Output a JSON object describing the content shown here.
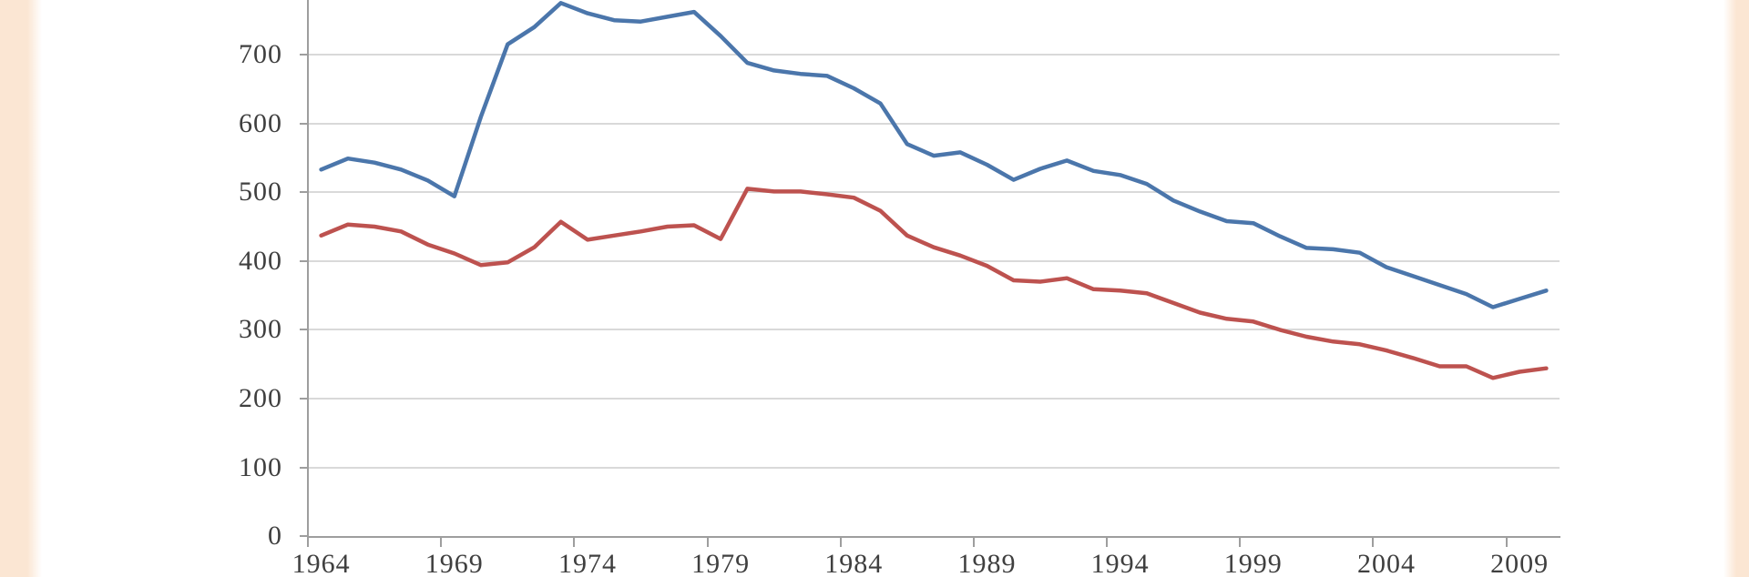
{
  "page": {
    "background_color": "#ffffff",
    "side_band_color": "#fbe6d3",
    "description": "Cropped two-series line chart, no visible title or legend"
  },
  "chart_data": {
    "type": "line",
    "title": "",
    "xlabel": "",
    "ylabel": "",
    "grid": true,
    "legend_position": "none-visible",
    "top_cropped": true,
    "ylim": [
      0,
      780
    ],
    "x": [
      1964,
      1965,
      1966,
      1967,
      1968,
      1969,
      1970,
      1971,
      1972,
      1973,
      1974,
      1975,
      1976,
      1977,
      1978,
      1979,
      1980,
      1981,
      1982,
      1983,
      1984,
      1985,
      1986,
      1987,
      1988,
      1989,
      1990,
      1991,
      1992,
      1993,
      1994,
      1995,
      1996,
      1997,
      1998,
      1999,
      2000,
      2001,
      2002,
      2003,
      2004,
      2005,
      2006,
      2007,
      2008,
      2009,
      2010
    ],
    "series": [
      {
        "name": "blue-series",
        "color": "#4b76ab",
        "values": [
          533,
          549,
          543,
          533,
          517,
          494,
          610,
          715,
          740,
          775,
          760,
          750,
          748,
          755,
          762,
          727,
          688,
          677,
          672,
          669,
          651,
          629,
          570,
          553,
          558,
          540,
          518,
          534,
          546,
          531,
          525,
          512,
          488,
          472,
          458,
          455,
          436,
          419,
          417,
          412,
          391,
          378,
          365,
          352,
          333,
          345,
          357
        ]
      },
      {
        "name": "red-series",
        "color": "#bd524f",
        "values": [
          437,
          453,
          450,
          443,
          424,
          411,
          394,
          398,
          420,
          457,
          431,
          437,
          443,
          450,
          452,
          432,
          505,
          501,
          501,
          497,
          492,
          473,
          437,
          420,
          408,
          393,
          372,
          370,
          375,
          359,
          357,
          353,
          339,
          325,
          316,
          312,
          300,
          290,
          283,
          279,
          270,
          259,
          247,
          247,
          230,
          239,
          244
        ]
      }
    ],
    "y_ticks": [
      0,
      100,
      200,
      300,
      400,
      500,
      600,
      700
    ],
    "y_tick_labels": [
      "0",
      "100",
      "200",
      "300",
      "400",
      "500",
      "600",
      "700"
    ],
    "x_tick_label_years": [
      1964,
      1969,
      1974,
      1979,
      1984,
      1989,
      1994,
      1999,
      2004,
      2009
    ],
    "x_tick_labels": [
      "1964",
      "1969",
      "1974",
      "1979",
      "1984",
      "1989",
      "1994",
      "1999",
      "2004",
      "2009"
    ],
    "colors": {
      "gridline": "#d9d9d9",
      "axis": "#9e9e9e",
      "tick_text": "#3f3f3f"
    }
  }
}
